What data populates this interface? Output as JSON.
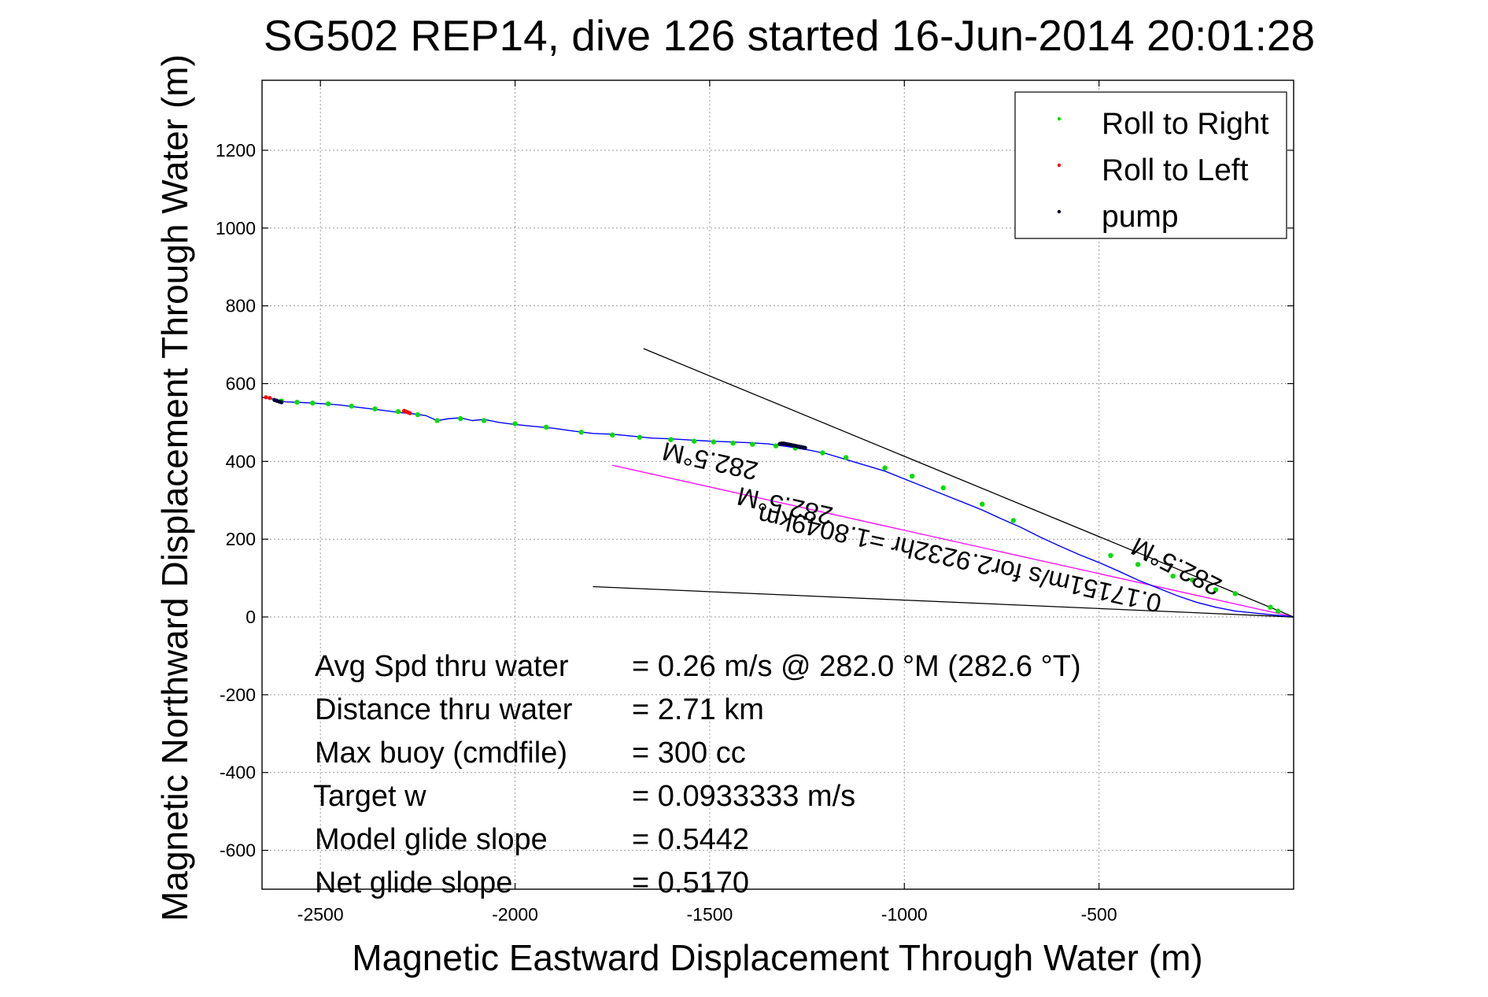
{
  "chart_data": {
    "type": "scatter",
    "title": "SG502 REP14, dive 126 started 16-Jun-2014 20:01:28",
    "xlabel": "Magnetic Eastward Displacement Through Water (m)",
    "ylabel": "Magnetic Northward Displacement Through Water (m)",
    "xlim": [
      -2650,
      0
    ],
    "ylim": [
      -700,
      1380
    ],
    "xticks": [
      -2500,
      -2000,
      -1500,
      -1000,
      -500
    ],
    "xtick_labels": [
      "-2500",
      "-2000",
      "-1500",
      "-1000",
      "-500"
    ],
    "yticks": [
      -600,
      -400,
      -200,
      0,
      200,
      400,
      600,
      800,
      1000,
      1200
    ],
    "ytick_labels": [
      "-600",
      "-400",
      "-200",
      "0",
      "200",
      "400",
      "600",
      "800",
      "1000",
      "1200"
    ],
    "grid": true,
    "legend_position": "top-right",
    "colors": {
      "track": "#0000ff",
      "roll_right": "#00dd00",
      "roll_left": "#ff0000",
      "pump": "#000033",
      "heading_line": "#ff00ff",
      "bounds": "#000000"
    },
    "track": {
      "x": [
        -2650,
        -2620,
        -2590,
        -2560,
        -2520,
        -2490,
        -2450,
        -2410,
        -2370,
        -2330,
        -2290,
        -2260,
        -2230,
        -2200,
        -2170,
        -2140,
        -2110,
        -2080,
        -2040,
        -2000,
        -1950,
        -1900,
        -1850,
        -1800,
        -1750,
        -1700,
        -1650,
        -1600,
        -1550,
        -1500,
        -1450,
        -1400,
        -1350,
        -1300,
        -1250,
        -1200,
        -1150,
        -1100,
        -1050,
        -1000,
        -950,
        -900,
        -850,
        -800,
        -750,
        -700,
        -650,
        -600,
        -550,
        -500,
        -450,
        -400,
        -350,
        -300,
        -250,
        -200,
        -150,
        -100,
        -50,
        0
      ],
      "y": [
        565,
        560,
        553,
        552,
        550,
        548,
        545,
        540,
        535,
        530,
        525,
        522,
        518,
        505,
        510,
        512,
        505,
        508,
        500,
        495,
        490,
        485,
        478,
        472,
        470,
        465,
        460,
        458,
        455,
        452,
        450,
        448,
        445,
        438,
        430,
        420,
        405,
        390,
        375,
        355,
        335,
        315,
        295,
        275,
        252,
        230,
        205,
        182,
        160,
        140,
        118,
        95,
        75,
        55,
        38,
        25,
        15,
        10,
        5,
        0
      ]
    },
    "series": [
      {
        "name": "Roll to Right",
        "x": [
          -2600,
          -2560,
          -2520,
          -2480,
          -2420,
          -2360,
          -2300,
          -2250,
          -2200,
          -2140,
          -2080,
          -2000,
          -1920,
          -1830,
          -1750,
          -1680,
          -1600,
          -1540,
          -1490,
          -1440,
          -1390,
          -1330,
          -1280,
          -1210,
          -1150,
          -1050,
          -980,
          -900,
          -800,
          -720,
          -470,
          -400,
          -310,
          -260,
          -200,
          -150,
          -60,
          -40
        ],
        "y": [
          555,
          552,
          550,
          548,
          542,
          535,
          528,
          520,
          505,
          510,
          505,
          497,
          488,
          475,
          468,
          462,
          456,
          452,
          450,
          447,
          444,
          440,
          434,
          422,
          410,
          383,
          362,
          332,
          290,
          248,
          158,
          135,
          105,
          95,
          70,
          60,
          25,
          15
        ]
      },
      {
        "name": "Roll to Left",
        "x": [
          -2640,
          -2630,
          -2285,
          -2280,
          -2275,
          -2270
        ],
        "y": [
          565,
          563,
          530,
          528,
          526,
          524
        ]
      },
      {
        "name": "pump",
        "x": [
          -2618,
          -2612,
          -2606,
          -2600,
          -1320,
          -1315,
          -1310,
          -1305,
          -1300,
          -1295,
          -1290,
          -1285,
          -1280,
          -1275,
          -1270,
          -1265,
          -1260,
          -1255
        ],
        "y": [
          558,
          556,
          554,
          552,
          445,
          446,
          446,
          445,
          444,
          443,
          442,
          441,
          440,
          439,
          438,
          437,
          436,
          435
        ]
      }
    ],
    "lines": [
      {
        "name": "heading",
        "x": [
          -1750,
          0
        ],
        "y": [
          390,
          0
        ]
      },
      {
        "name": "upper-bound",
        "x": [
          -1670,
          0
        ],
        "y": [
          690,
          0
        ]
      },
      {
        "name": "lower-bound",
        "x": [
          -1800,
          0
        ],
        "y": [
          78,
          0
        ]
      }
    ],
    "annotations": {
      "rotated_long": "0.17151m/s for2.9232hr =1.8049km",
      "rotated_long_2": "282.5°M",
      "rotated_upper": "282.5°M",
      "rotated_short": "282.5°M"
    },
    "stats": [
      {
        "label": "Avg Spd thru water",
        "value": "=  0.26 m/s @ 282.0 °M (282.6 °T)"
      },
      {
        "label": "Distance thru water",
        "value": "=  2.71 km"
      },
      {
        "label": "Max buoy (cmdfile)",
        "value": "= 300 cc"
      },
      {
        "label": "Target w",
        "value": "= 0.0933333 m/s"
      },
      {
        "label": "Model glide slope",
        "value": "= 0.5442"
      },
      {
        "label": "Net glide slope",
        "value": "= 0.5170"
      }
    ]
  }
}
